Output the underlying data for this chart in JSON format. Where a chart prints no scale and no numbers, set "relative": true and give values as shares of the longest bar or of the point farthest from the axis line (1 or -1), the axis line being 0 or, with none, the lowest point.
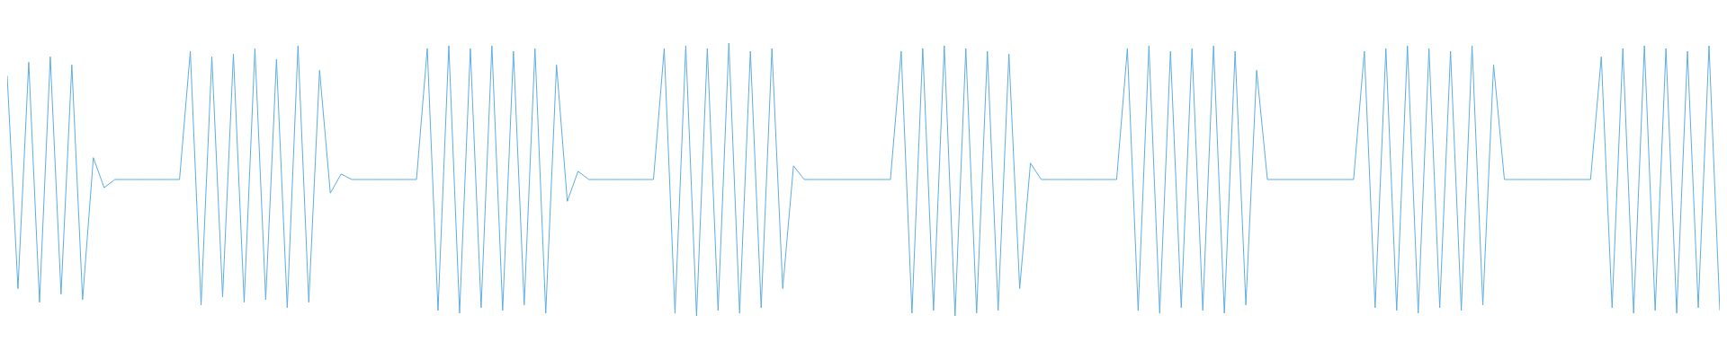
{
  "chart_data": {
    "type": "line",
    "relative": true,
    "categories": [
      null,
      null,
      null,
      null,
      null,
      null,
      null,
      null,
      null,
      null,
      null,
      null,
      null,
      null,
      null,
      null,
      null,
      null,
      null,
      null,
      null,
      null,
      null,
      null,
      null,
      null,
      null,
      null,
      null,
      null,
      null,
      null,
      null,
      null,
      null,
      null,
      null,
      null,
      null,
      null,
      null,
      null,
      null,
      null,
      null,
      null,
      null,
      null,
      null,
      null,
      null,
      null,
      null,
      null,
      null,
      null,
      null,
      null,
      null,
      null,
      null,
      null,
      null,
      null,
      null,
      null,
      null,
      null,
      null,
      null,
      null,
      null,
      null,
      null,
      null,
      null,
      null,
      null,
      null,
      null,
      null,
      null,
      null,
      null,
      null,
      null,
      null,
      null,
      null,
      null,
      null,
      null,
      null,
      null,
      null,
      null,
      null,
      null,
      null,
      null,
      null,
      null,
      null,
      null,
      null,
      null,
      null,
      null,
      null,
      null,
      null,
      null,
      null,
      null,
      null,
      null,
      null,
      null,
      null,
      null,
      null,
      null,
      null,
      null,
      null,
      null,
      null,
      null,
      null,
      null,
      null,
      null,
      null,
      null,
      null,
      null,
      null,
      null,
      null,
      null,
      null,
      null,
      null,
      null,
      null,
      null,
      null,
      null,
      null,
      null,
      null,
      null,
      null,
      null,
      null,
      null,
      null,
      null,
      null,
      null
    ],
    "series": [
      {
        "color": "#5dade2",
        "values": [
          0.88,
          0.1,
          0.93,
          0.05,
          0.95,
          0.08,
          0.92,
          0.06,
          0.58,
          0.47,
          0.5,
          0.5,
          0.5,
          0.5,
          0.5,
          0.5,
          0.5,
          0.97,
          0.04,
          0.95,
          0.07,
          0.96,
          0.05,
          0.98,
          0.06,
          0.94,
          0.03,
          0.99,
          0.05,
          0.9,
          0.45,
          0.52,
          0.5,
          0.5,
          0.5,
          0.5,
          0.5,
          0.5,
          0.5,
          0.98,
          0.02,
          0.99,
          0.01,
          0.98,
          0.03,
          0.99,
          0.02,
          0.97,
          0.04,
          0.98,
          0.01,
          0.92,
          0.42,
          0.53,
          0.5,
          0.5,
          0.5,
          0.5,
          0.5,
          0.5,
          0.5,
          0.98,
          0.01,
          0.99,
          0,
          0.98,
          0.02,
          1,
          0.01,
          0.97,
          0.03,
          0.98,
          0.1,
          0.55,
          0.5,
          0.5,
          0.5,
          0.5,
          0.5,
          0.5,
          0.5,
          0.5,
          0.5,
          0.97,
          0.01,
          0.98,
          0.02,
          0.99,
          0,
          0.98,
          0.01,
          0.97,
          0.02,
          0.96,
          0.1,
          0.56,
          0.5,
          0.5,
          0.5,
          0.5,
          0.5,
          0.5,
          0.5,
          0.5,
          0.98,
          0.02,
          0.99,
          0.01,
          0.97,
          0.03,
          0.98,
          0.02,
          0.99,
          0.01,
          0.97,
          0.04,
          0.9,
          0.5,
          0.5,
          0.5,
          0.5,
          0.5,
          0.5,
          0.5,
          0.5,
          0.5,
          0.97,
          0.03,
          0.98,
          0.02,
          0.99,
          0.01,
          0.98,
          0.03,
          0.97,
          0.02,
          0.99,
          0.04,
          0.92,
          0.5,
          0.5,
          0.5,
          0.5,
          0.5,
          0.5,
          0.5,
          0.5,
          0.5,
          0.95,
          0.03,
          0.98,
          0.01,
          0.99,
          0.02,
          0.98,
          0.01,
          0.97,
          0.03,
          0.99,
          0.02
        ]
      }
    ]
  }
}
